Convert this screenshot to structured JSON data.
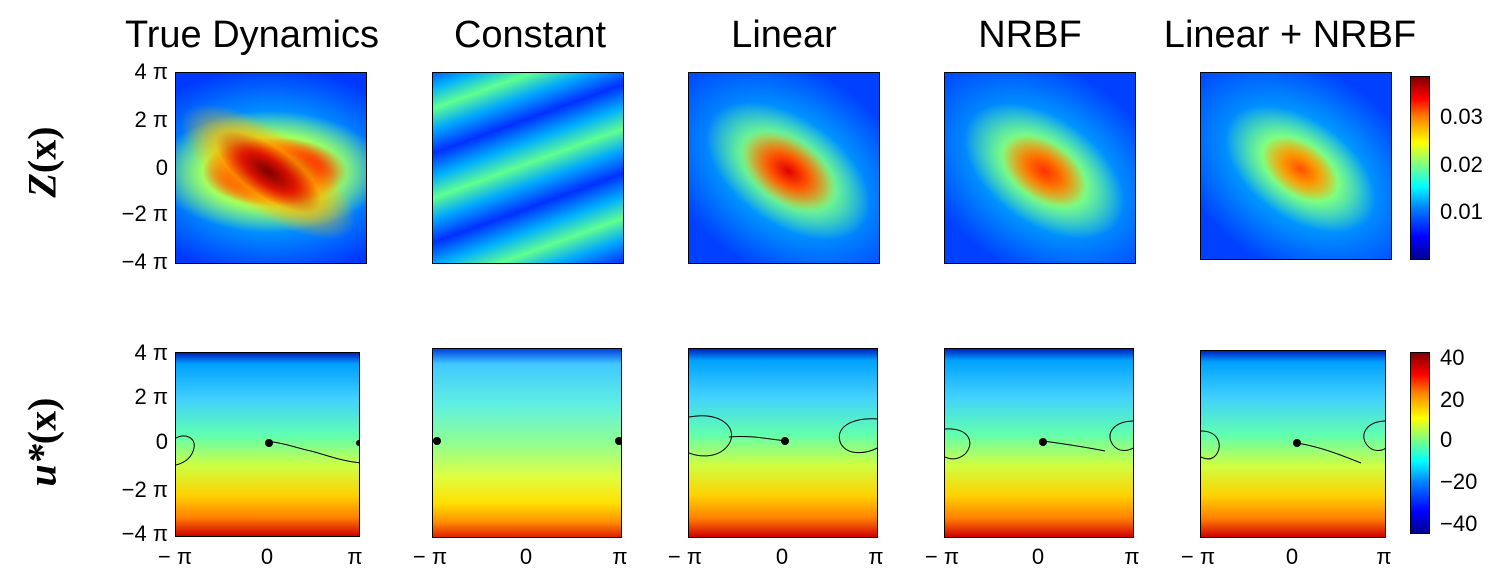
{
  "columns": [
    "True Dynamics",
    "Constant",
    "Linear",
    "NRBF",
    "Linear + NRBF"
  ],
  "rows": [
    {
      "label_main": "Z",
      "label_paren": "(x)"
    },
    {
      "label_main": "u*",
      "label_paren": "(x)"
    }
  ],
  "y_ticks": [
    "4 π",
    "2 π",
    "0",
    "−2 π",
    "−4 π"
  ],
  "x_ticks": [
    "− π",
    "0",
    "π"
  ],
  "colorbars": [
    {
      "ticks": [
        "0.03",
        "0.02",
        "0.01"
      ],
      "values": [
        0.03,
        0.02,
        0.01
      ],
      "range": [
        0.001,
        0.037
      ]
    },
    {
      "ticks": [
        "40",
        "20",
        "0",
        "−20",
        "−40"
      ],
      "values": [
        40,
        20,
        0,
        -20,
        -40
      ],
      "range": [
        -45,
        45
      ]
    }
  ],
  "chart_data": {
    "type": "heatmap",
    "xlim": [
      "−π",
      "π"
    ],
    "ylim": [
      "−4π",
      "4π"
    ],
    "colormap": "jet",
    "panels": [
      {
        "row": "Z(x)",
        "column": "True Dynamics",
        "peak_value": 0.037,
        "pattern": "tilted ellipse centred at origin"
      },
      {
        "row": "Z(x)",
        "column": "Constant",
        "peak_value": 0.023,
        "pattern": "diagonal bands"
      },
      {
        "row": "Z(x)",
        "column": "Linear",
        "peak_value": 0.032,
        "pattern": "tilted ellipse centred at origin"
      },
      {
        "row": "Z(x)",
        "column": "NRBF",
        "peak_value": 0.03,
        "pattern": "tilted ellipse centred at origin"
      },
      {
        "row": "Z(x)",
        "column": "Linear + NRBF",
        "peak_value": 0.028,
        "pattern": "tilted ellipse centred at origin"
      },
      {
        "row": "u*(x)",
        "column": "True Dynamics",
        "range": [
          -40,
          40
        ],
        "pattern": "negative top, positive bottom, switching curve"
      },
      {
        "row": "u*(x)",
        "column": "Constant",
        "range": [
          -40,
          40
        ],
        "pattern": "vertical gradient"
      },
      {
        "row": "u*(x)",
        "column": "Linear",
        "range": [
          -40,
          40
        ],
        "pattern": "negative top, positive bottom, switching curve"
      },
      {
        "row": "u*(x)",
        "column": "NRBF",
        "range": [
          -40,
          40
        ],
        "pattern": "negative top, positive bottom, switching curve"
      },
      {
        "row": "u*(x)",
        "column": "Linear + NRBF",
        "range": [
          -40,
          40
        ],
        "pattern": "negative top, positive bottom, switching curve"
      }
    ]
  }
}
